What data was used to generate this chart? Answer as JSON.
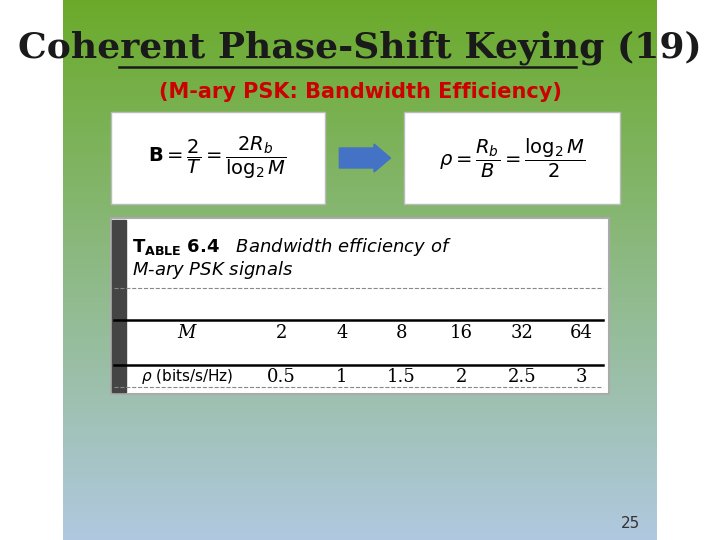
{
  "title": "Coherent Phase-Shift Keying (19)",
  "subtitle": "(M-ary PSK: Bandwidth Efficiency)",
  "title_color": "#1a1a1a",
  "subtitle_color": "#cc0000",
  "bg_top_color": "#6aaa2a",
  "bg_bottom_color": "#b0c8e0",
  "page_number": "25",
  "M_values": [
    "M",
    "2",
    "4",
    "8",
    "16",
    "32",
    "64"
  ],
  "rho_label": "\\u03c1 (bits/s/Hz)",
  "rho_values": [
    "0.5",
    "1",
    "1.5",
    "2",
    "2.5",
    "3"
  ],
  "arrow_color": "#4472c4"
}
